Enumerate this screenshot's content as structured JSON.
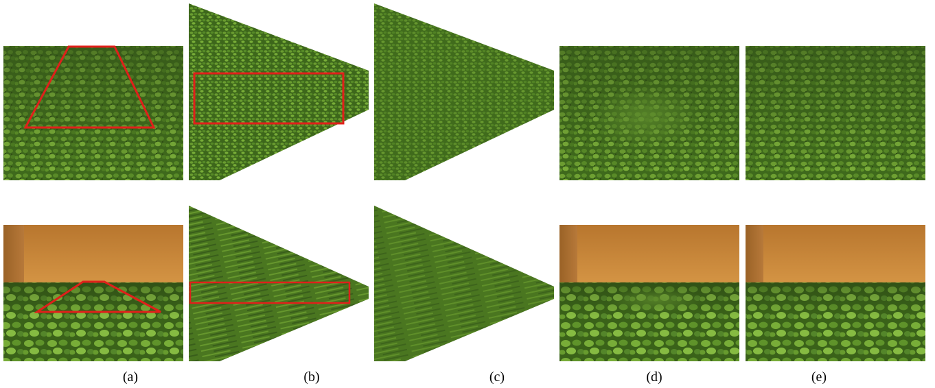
{
  "figure": {
    "rows": [
      {
        "name": "clover-ground",
        "panels": [
          {
            "id": "a",
            "kind": "camera-view",
            "overlay": "trapezoid-region-marker"
          },
          {
            "id": "b",
            "kind": "rectified-top-view",
            "overlay": "rectangle-region-marker"
          },
          {
            "id": "c",
            "kind": "rectified-top-view-filled"
          },
          {
            "id": "d",
            "kind": "camera-view-result"
          },
          {
            "id": "e",
            "kind": "camera-view-result"
          }
        ]
      },
      {
        "name": "clover-ground-with-wall",
        "panels": [
          {
            "id": "a",
            "kind": "camera-view",
            "overlay": "trapezoid-region-marker"
          },
          {
            "id": "b",
            "kind": "rectified-top-view",
            "overlay": "rectangle-region-marker"
          },
          {
            "id": "c",
            "kind": "rectified-top-view-filled"
          },
          {
            "id": "d",
            "kind": "camera-view-result"
          },
          {
            "id": "e",
            "kind": "camera-view-result"
          }
        ]
      }
    ],
    "captions": [
      "(a)",
      "(b)",
      "(c)",
      "(d)",
      "(e)"
    ],
    "colors": {
      "marker": "#e0201a",
      "foliage_dark": "#2f4a17",
      "foliage_mid": "#4d7a22",
      "foliage_light": "#86b83c",
      "wall_top": "#b8762e",
      "wall_bottom": "#d08f40",
      "wall_side": "#a96a25"
    }
  }
}
